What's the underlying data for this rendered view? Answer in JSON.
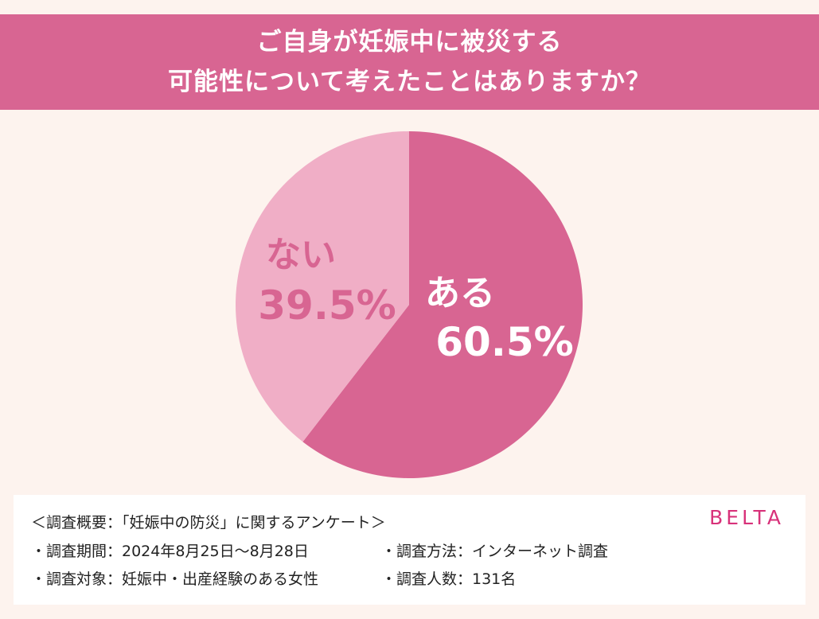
{
  "header": {
    "title_line1": "ご自身が妊娠中に被災する",
    "title_line2": "可能性について考えたことはありますか？"
  },
  "colors": {
    "header_bg": "#d86592",
    "slice_aru": "#d86592",
    "slice_nai": "#f0aec6",
    "label_aru": "#ffffff",
    "label_nai": "#d86592",
    "background": "#fdf3ee",
    "brand": "#d8327a"
  },
  "chart_data": {
    "type": "pie",
    "categories": [
      "ある",
      "ない"
    ],
    "values": [
      60.5,
      39.5
    ],
    "labels": [
      "60.5%",
      "39.5%"
    ]
  },
  "info": {
    "summary": "＜調査概要：「妊娠中の防災」に関するアンケート＞",
    "period": "・調査期間：2024年8月25日〜8月28日",
    "method": "・調査方法：インターネット調査",
    "target": "・調査対象：妊娠中・出産経験のある女性",
    "count": "・調査人数：131名",
    "brand": "BELTA"
  }
}
